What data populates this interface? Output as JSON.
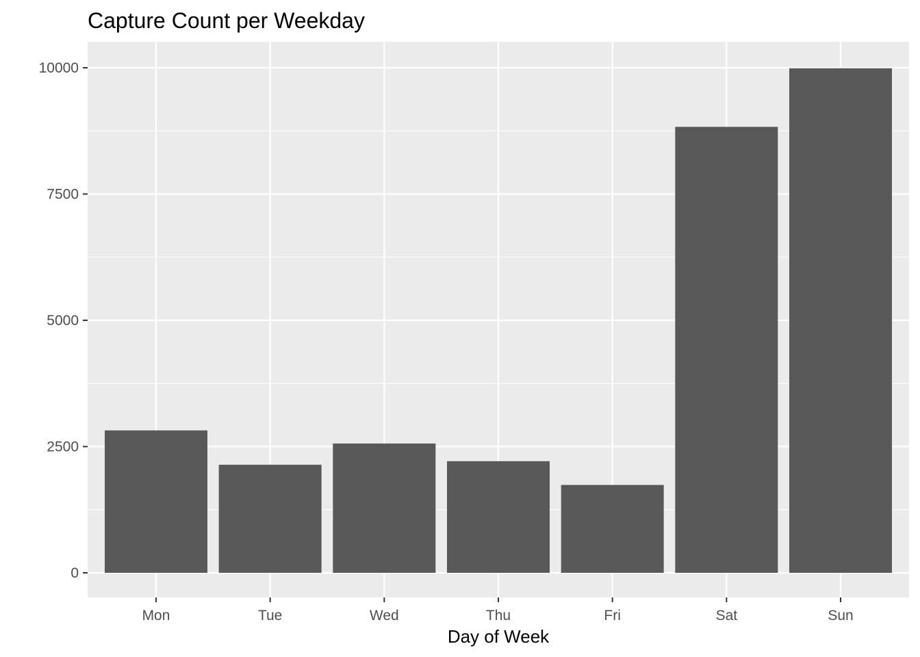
{
  "chart_data": {
    "type": "bar",
    "title": "Capture Count per Weekday",
    "xlabel": "Day of Week",
    "ylabel": "",
    "categories": [
      "Mon",
      "Tue",
      "Wed",
      "Thu",
      "Fri",
      "Sat",
      "Sun"
    ],
    "values": [
      2820,
      2140,
      2560,
      2210,
      1740,
      8830,
      9990
    ],
    "ylim": [
      -480,
      10480
    ],
    "yticks": [
      0,
      2500,
      5000,
      7500,
      10000
    ],
    "ytick_labels": [
      "0",
      "2500",
      "5000",
      "7500",
      "10000"
    ],
    "grid": true,
    "legend": "none",
    "colors": {
      "bar": "#595959",
      "panel": "#ebebeb",
      "grid": "#ffffff",
      "tick": "#333333"
    }
  }
}
